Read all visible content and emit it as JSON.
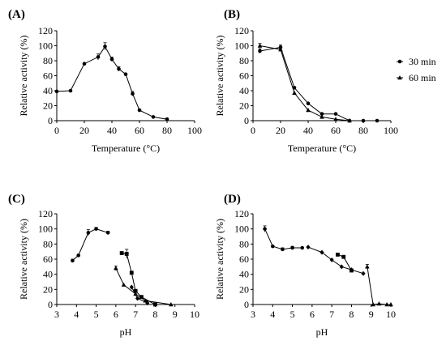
{
  "chart_data": [
    {
      "panel": "(A)",
      "type": "line",
      "xlabel": "Temperature (°C)",
      "ylabel": "Relative activity (%)",
      "xlim": [
        0,
        100
      ],
      "ylim": [
        0,
        120
      ],
      "xticks": [
        "0",
        "20",
        "40",
        "60",
        "80",
        "100"
      ],
      "yticks": [
        "0",
        "20",
        "40",
        "60",
        "80",
        "100",
        "120"
      ],
      "grid": false,
      "series": [
        {
          "marker": "circle",
          "x": [
            0,
            10,
            20,
            30,
            35,
            40,
            45,
            50,
            55,
            60,
            70,
            80
          ],
          "y": [
            39,
            40,
            76,
            85,
            99,
            82,
            69,
            62,
            36,
            14,
            5,
            2
          ],
          "err": [
            0,
            0,
            0,
            4,
            5,
            3,
            3,
            0,
            3,
            0,
            0,
            0
          ]
        }
      ]
    },
    {
      "panel": "(B)",
      "type": "line",
      "xlabel": "Temperature (°C)",
      "ylabel": "Relative activity (%)",
      "xlim": [
        0,
        100
      ],
      "ylim": [
        0,
        120
      ],
      "xticks": [
        "0",
        "20",
        "40",
        "60",
        "80",
        "100"
      ],
      "yticks": [
        "0",
        "20",
        "40",
        "60",
        "80",
        "100",
        "120"
      ],
      "grid": false,
      "legend_position": "right",
      "series": [
        {
          "name": "30 min",
          "marker": "circle",
          "x": [
            5,
            20,
            30,
            40,
            50,
            60,
            70,
            80,
            90
          ],
          "y": [
            93,
            98,
            44,
            23,
            9,
            9,
            0,
            0,
            0
          ],
          "err": [
            3,
            3,
            0,
            0,
            0,
            0,
            0,
            0,
            0
          ]
        },
        {
          "name": "60 min",
          "marker": "triangle",
          "x": [
            5,
            20,
            30,
            40,
            50,
            60,
            70
          ],
          "y": [
            100,
            95,
            37,
            14,
            5,
            2,
            0
          ],
          "err": [
            3,
            2,
            0,
            0,
            0,
            0,
            0
          ]
        }
      ]
    },
    {
      "panel": "(C)",
      "type": "line",
      "xlabel": "pH",
      "ylabel": "Relative activity (%)",
      "xlim": [
        3,
        10
      ],
      "ylim": [
        0,
        120
      ],
      "xticks": [
        "3",
        "4",
        "5",
        "6",
        "7",
        "8",
        "9",
        "10"
      ],
      "yticks": [
        "0",
        "20",
        "40",
        "60",
        "80",
        "100",
        "120"
      ],
      "grid": false,
      "series": [
        {
          "marker": "circle",
          "x": [
            3.8,
            4.1,
            4.6,
            5.0,
            5.6
          ],
          "y": [
            58,
            65,
            95,
            100,
            95
          ],
          "err": [
            2,
            0,
            4,
            2,
            2
          ]
        },
        {
          "marker": "square",
          "x": [
            6.3,
            6.55,
            6.8,
            7.0,
            7.3,
            8.0
          ],
          "y": [
            68,
            67,
            42,
            18,
            10,
            0
          ],
          "err": [
            0,
            6,
            0,
            0,
            0,
            0
          ]
        },
        {
          "marker": "triangle",
          "x": [
            6.0,
            6.4,
            7.0,
            7.5,
            8.8
          ],
          "y": [
            48,
            26,
            14,
            5,
            0
          ],
          "err": [
            3,
            0,
            0,
            0,
            0
          ]
        },
        {
          "marker": "diamond",
          "x": [
            6.8,
            7.1,
            7.6
          ],
          "y": [
            23,
            8,
            2
          ],
          "err": [
            0,
            0,
            0
          ]
        }
      ]
    },
    {
      "panel": "(D)",
      "type": "line",
      "xlabel": "pH",
      "ylabel": "Relative activity (%)",
      "xlim": [
        3,
        10
      ],
      "ylim": [
        0,
        120
      ],
      "xticks": [
        "3",
        "4",
        "5",
        "6",
        "7",
        "8",
        "9",
        "10"
      ],
      "yticks": [
        "0",
        "20",
        "40",
        "60",
        "80",
        "100",
        "120"
      ],
      "grid": false,
      "series": [
        {
          "marker": "circle",
          "x": [
            3.6,
            4.0,
            4.5,
            5.0,
            5.5
          ],
          "y": [
            100,
            77,
            73,
            75,
            75
          ],
          "err": [
            4,
            0,
            2,
            2,
            0
          ]
        },
        {
          "marker": "diamond",
          "x": [
            5.8,
            6.5,
            7.0,
            7.5,
            8.0,
            8.6
          ],
          "y": [
            76,
            69,
            59,
            50,
            46,
            41
          ],
          "err": [
            0,
            0,
            0,
            0,
            0,
            0
          ]
        },
        {
          "marker": "square",
          "x": [
            7.3,
            7.6,
            8.0
          ],
          "y": [
            66,
            63,
            45
          ],
          "err": [
            2,
            2,
            0
          ]
        },
        {
          "marker": "triangle",
          "x": [
            8.8,
            9.1,
            9.4,
            9.8,
            10.0
          ],
          "y": [
            50,
            0,
            1,
            0,
            0
          ],
          "err": [
            3,
            0,
            0,
            0,
            0
          ]
        }
      ]
    }
  ]
}
